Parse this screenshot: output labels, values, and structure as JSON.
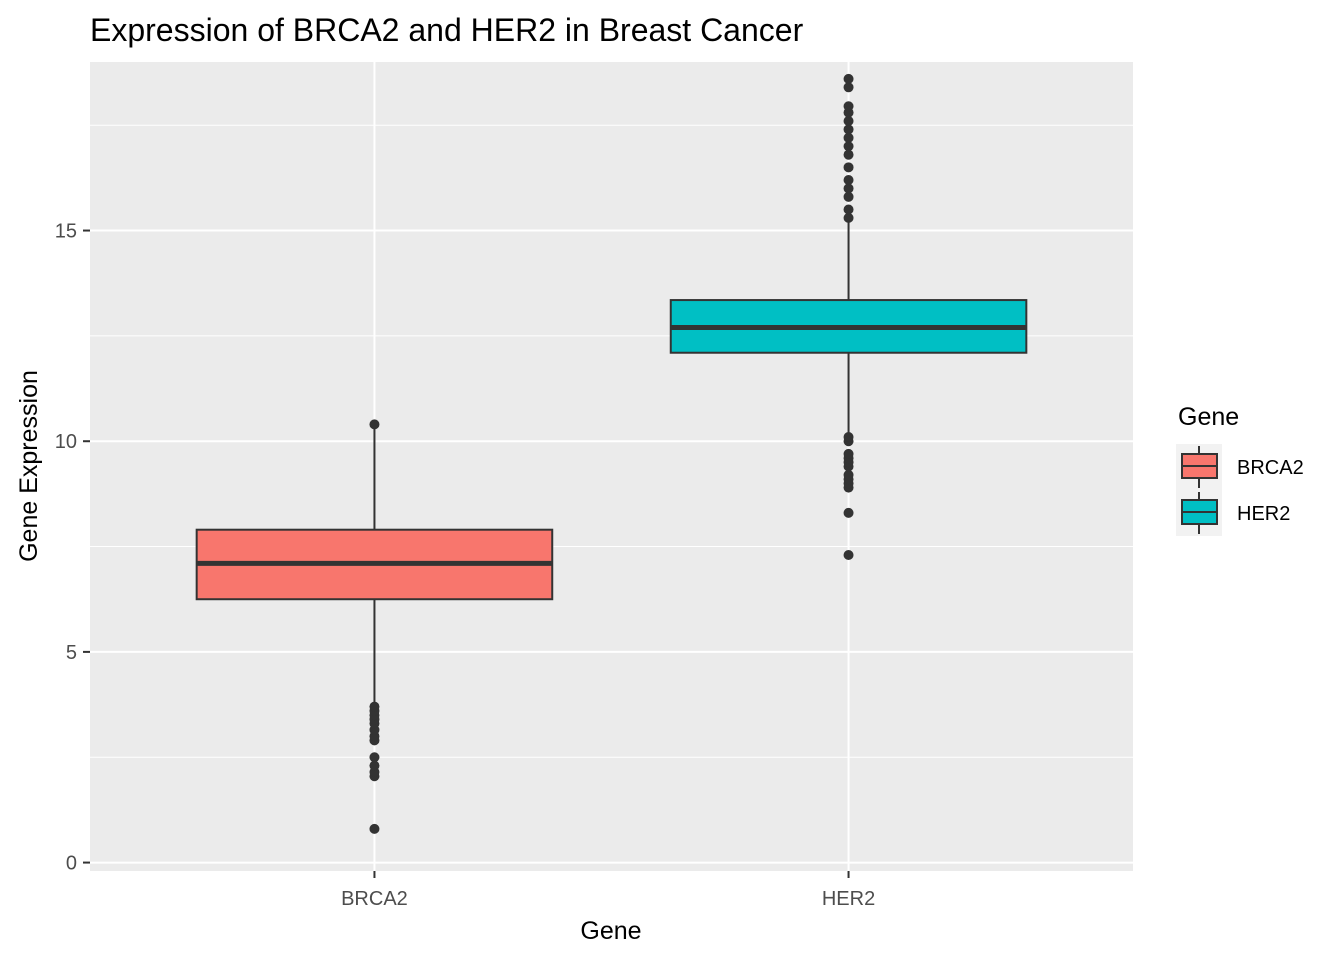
{
  "chart_data": {
    "type": "box",
    "title": "Expression of BRCA2 and HER2 in Breast Cancer",
    "xlabel": "Gene",
    "ylabel": "Gene Expression",
    "ylim": [
      -0.2,
      19.0
    ],
    "y_ticks": [
      0,
      5,
      10,
      15
    ],
    "y_minor_ticks": [
      2.5,
      7.5,
      12.5,
      17.5
    ],
    "grid": true,
    "legend": {
      "title": "Gene",
      "placement": "right"
    },
    "categories": [
      "BRCA2",
      "HER2"
    ],
    "series": [
      {
        "name": "BRCA2",
        "color": "#F8766D",
        "q1": 6.25,
        "median": 7.1,
        "q3": 7.9,
        "whisker_low": 3.8,
        "whisker_high": 10.3,
        "outliers": [
          0.8,
          2.05,
          2.15,
          2.3,
          2.5,
          2.9,
          3.0,
          3.15,
          3.3,
          3.4,
          3.5,
          3.6,
          3.7,
          10.4
        ]
      },
      {
        "name": "HER2",
        "color": "#00BFC4",
        "q1": 12.1,
        "median": 12.7,
        "q3": 13.35,
        "whisker_low": 10.2,
        "whisker_high": 15.2,
        "outliers": [
          7.3,
          8.3,
          8.9,
          9.0,
          9.1,
          9.2,
          9.4,
          9.5,
          9.6,
          9.7,
          10.0,
          10.1,
          15.3,
          15.5,
          15.8,
          16.0,
          16.2,
          16.5,
          16.8,
          17.0,
          17.2,
          17.4,
          17.6,
          17.8,
          17.95,
          18.4,
          18.6
        ]
      }
    ]
  }
}
